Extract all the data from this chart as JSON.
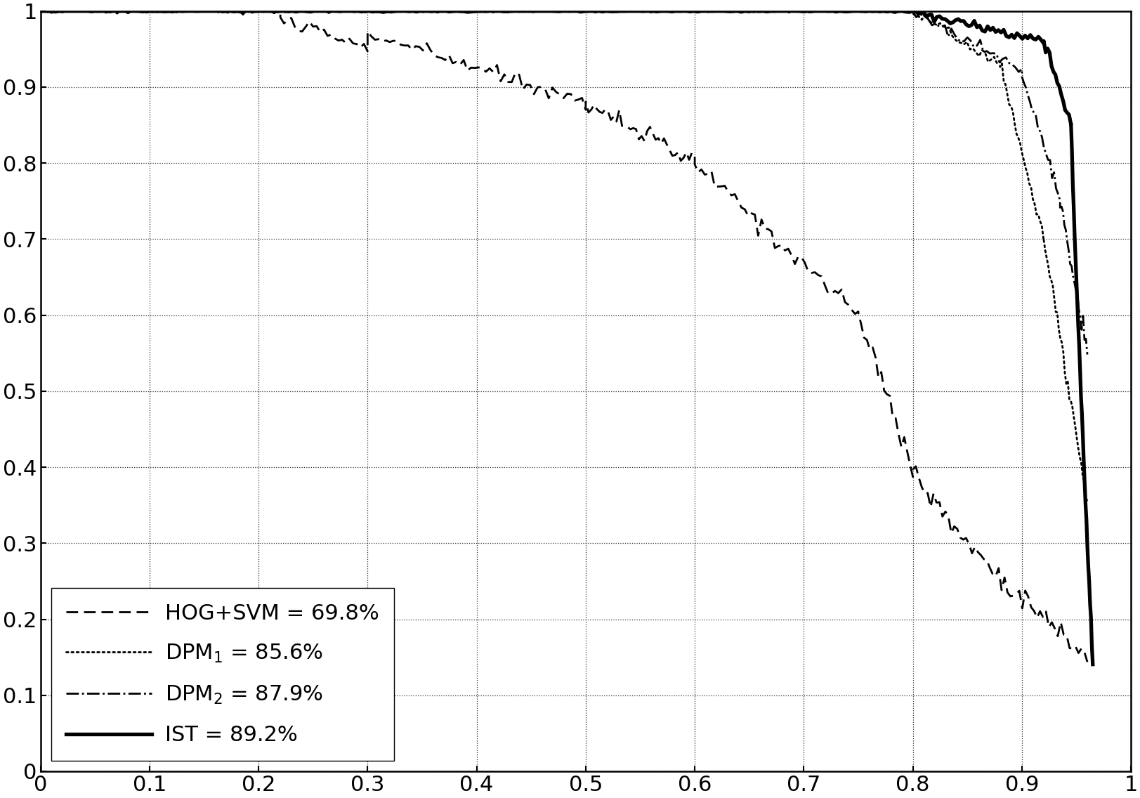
{
  "title": "",
  "xlim": [
    0,
    1
  ],
  "ylim": [
    0,
    1
  ],
  "xticks": [
    0,
    0.1,
    0.2,
    0.3,
    0.4,
    0.5,
    0.6,
    0.7,
    0.8,
    0.9,
    1
  ],
  "yticks": [
    0,
    0.1,
    0.2,
    0.3,
    0.4,
    0.5,
    0.6,
    0.7,
    0.8,
    0.9,
    1
  ],
  "legend_labels": [
    "HOG+SVM = 69.8%",
    "DPM_1 = 85.6%",
    "DPM_2 = 87.9%",
    "IST = 89.2%"
  ],
  "legend_loc": "lower left",
  "background_color": "#ffffff",
  "line_color": "#000000"
}
